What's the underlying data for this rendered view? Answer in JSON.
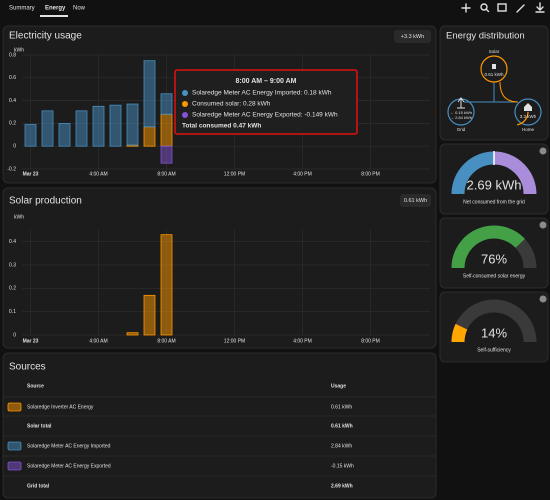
{
  "header": {
    "tabs": [
      "Summary",
      "Energy",
      "Now"
    ]
  },
  "chart_data": [
    {
      "type": "bar",
      "title": "Electricity usage",
      "badge": "+3.3 kWh",
      "y_label": "kWh",
      "stacked": true,
      "grid": true,
      "x": [
        0,
        1,
        2,
        3,
        4,
        5,
        6,
        7,
        8
      ],
      "series": [
        {
          "color": "#ff9800",
          "values": [
            0,
            0,
            0,
            0,
            0,
            0,
            0.01,
            0.17,
            0.28
          ]
        },
        {
          "color": "#488fc2",
          "values": [
            0.19,
            0.31,
            0.2,
            0.31,
            0.35,
            0.36,
            0.36,
            0.58,
            0.18
          ]
        },
        {
          "color": "#8353d1",
          "values": [
            null,
            null,
            null,
            null,
            null,
            null,
            null,
            null,
            -0.149
          ]
        }
      ],
      "xlim": [
        -0.5,
        23.5
      ],
      "xticks": [
        {
          "value": 0,
          "label": "Mar 23"
        },
        {
          "value": 4,
          "label": "4:00 AM"
        },
        {
          "value": 8,
          "label": "8:00 AM"
        },
        {
          "value": 12,
          "label": "12:00 PM"
        },
        {
          "value": 16,
          "label": "4:00 PM"
        },
        {
          "value": 20,
          "label": "8:00 PM"
        }
      ],
      "ylim": [
        -0.2,
        0.8
      ],
      "yticks": [
        -0.2,
        0,
        0.2,
        0.4,
        0.6,
        0.8
      ],
      "tooltip": {
        "title": "8:00 AM – 9:00 AM",
        "lines": [
          {
            "color": "#488fc2",
            "text": "Solaredge Meter AC Energy Imported: 0.18 kWh"
          },
          {
            "color": "#ff9800",
            "text": "Consumed solar: 0.28 kWh"
          },
          {
            "color": "#8353d1",
            "text": "Solaredge Meter AC Energy Exported: -0.149 kWh"
          }
        ],
        "total": "Total consumed 0.47 kWh"
      }
    },
    {
      "type": "bar",
      "title": "Solar production",
      "badge": "0.61 kWh",
      "y_label": "kWh",
      "grid": true,
      "x": [
        6,
        7,
        8
      ],
      "series": [
        {
          "color": "#ff9800",
          "values": [
            0.01,
            0.17,
            0.43
          ]
        }
      ],
      "xlim": [
        -0.5,
        23.5
      ],
      "xticks": [
        {
          "value": 0,
          "label": "Mar 23"
        },
        {
          "value": 4,
          "label": "4:00 AM"
        },
        {
          "value": 8,
          "label": "8:00 AM"
        },
        {
          "value": 12,
          "label": "12:00 PM"
        },
        {
          "value": 16,
          "label": "4:00 PM"
        },
        {
          "value": 20,
          "label": "8:00 PM"
        }
      ],
      "ylim": [
        0,
        0.45
      ],
      "yticks": [
        0,
        0.1,
        0.2,
        0.3,
        0.4
      ]
    }
  ],
  "energy_distribution": {
    "title": "Energy distribution",
    "solar": {
      "label": "Solar",
      "value": "0.61 kWh"
    },
    "grid": {
      "label": "Grid",
      "returned": "← 0.15 kWh",
      "consumed": "→ 2.84 kWh"
    },
    "home": {
      "label": "Home",
      "value": "3.3 kWh"
    }
  },
  "gauges": [
    {
      "value_label": "2.69 kWh",
      "caption": "Net consumed from the grid"
    },
    {
      "value": 76,
      "value_label": "76%",
      "range": [
        0,
        100
      ],
      "color": "#43a047",
      "caption": "Self-consumed solar energy"
    },
    {
      "value": 14,
      "value_label": "14%",
      "range": [
        0,
        100
      ],
      "color": "#ffa600",
      "caption": "Self-sufficiency"
    }
  ],
  "sources": {
    "title": "Sources",
    "columns": [
      "Source",
      "Usage"
    ],
    "rows": [
      {
        "color": "#ff9800",
        "cells": [
          "Solaredge Inverter AC Energy",
          "0.61 kWh"
        ]
      },
      {
        "total": true,
        "cells": [
          "Solar total",
          "0.61 kWh"
        ]
      },
      {
        "color": "#488fc2",
        "cells": [
          "Solaredge Meter AC Energy Imported",
          "2.84 kWh"
        ]
      },
      {
        "color": "#8353d1",
        "cells": [
          "Solaredge Meter AC Energy Exported",
          "-0.15 kWh"
        ]
      },
      {
        "total": true,
        "cells": [
          "Grid total",
          "2.69 kWh"
        ]
      }
    ]
  }
}
